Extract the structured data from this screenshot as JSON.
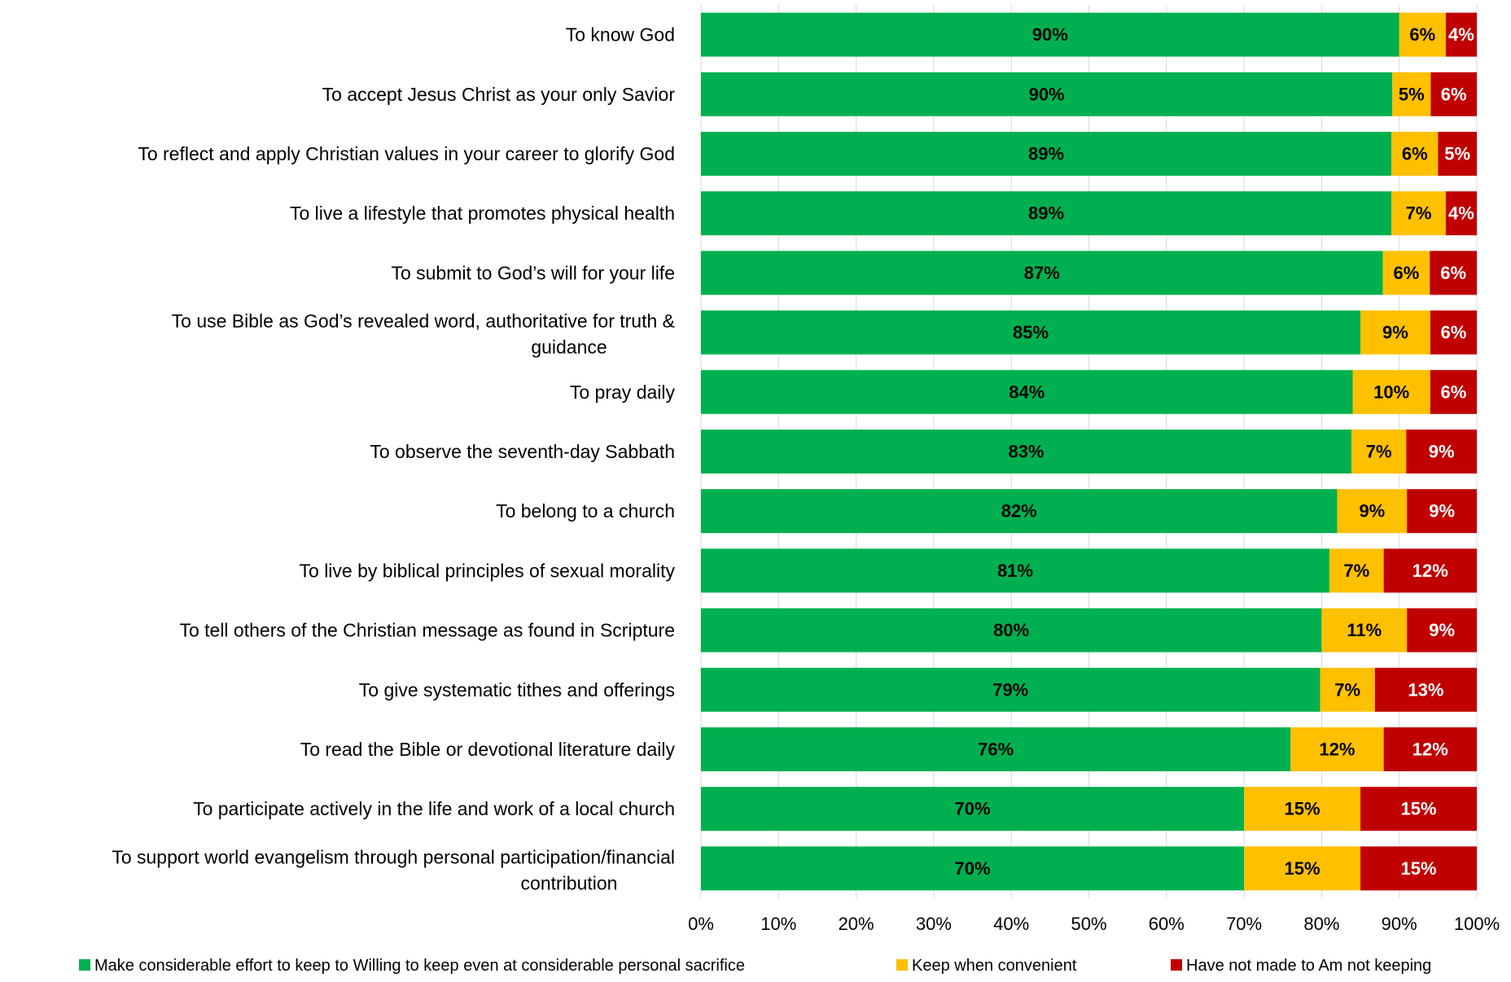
{
  "chart_data": {
    "type": "bar",
    "orientation": "horizontal",
    "stacked": true,
    "categories": [
      "To know God",
      "To accept Jesus Christ as your only Savior",
      "To reflect and apply Christian values in your career to glorify God",
      "To live a lifestyle that promotes physical health",
      "To submit to God’s will for your life",
      "To use Bible as God’s revealed word, authoritative for truth & guidance",
      "To pray daily",
      "To observe the seventh-day Sabbath",
      "To belong to a church",
      "To live by biblical principles of sexual morality",
      "To tell others of the Christian message as found in Scripture",
      "To give systematic tithes and offerings",
      "To read the Bible or devotional literature daily",
      "To participate actively in the life and work of a local church",
      "To support world evangelism through personal participation/financial contribution"
    ],
    "series": [
      {
        "name": "Make considerable effort to keep to Willing to keep even at considerable personal sacrifice",
        "color": "#00B050",
        "label_color": "#000000",
        "values": [
          90,
          90,
          89,
          89,
          87,
          85,
          84,
          83,
          82,
          81,
          80,
          79,
          76,
          70,
          70
        ],
        "labels": [
          "90%",
          "90%",
          "89%",
          "89%",
          "87%",
          "85%",
          "84%",
          "83%",
          "82%",
          "81%",
          "80%",
          "79%",
          "76%",
          "70%",
          "70%"
        ]
      },
      {
        "name": "Keep when convenient",
        "color": "#FFC000",
        "label_color": "#000000",
        "values": [
          6,
          5,
          6,
          7,
          6,
          9,
          10,
          7,
          9,
          7,
          11,
          7,
          12,
          15,
          15
        ],
        "labels": [
          "6%",
          "5%",
          "6%",
          "7%",
          "6%",
          "9%",
          "10%",
          "7%",
          "9%",
          "7%",
          "11%",
          "7%",
          "12%",
          "15%",
          "15%"
        ]
      },
      {
        "name": "Have not made to Am not keeping",
        "color": "#C00000",
        "label_color": "#ffffff",
        "values": [
          4,
          6,
          5,
          4,
          6,
          6,
          6,
          9,
          9,
          12,
          9,
          13,
          12,
          15,
          15
        ],
        "labels": [
          "4%",
          "6%",
          "5%",
          "4%",
          "6%",
          "6%",
          "6%",
          "9%",
          "9%",
          "12%",
          "9%",
          "13%",
          "12%",
          "15%",
          "15%"
        ]
      }
    ],
    "xlim": [
      0,
      100
    ],
    "x_ticks": [
      "0%",
      "10%",
      "20%",
      "30%",
      "40%",
      "50%",
      "60%",
      "70%",
      "80%",
      "90%",
      "100%"
    ],
    "title": "",
    "xlabel": "",
    "ylabel": "",
    "grid": "vertical",
    "grid_color": "#D9D9D9",
    "legend_position": "bottom"
  }
}
